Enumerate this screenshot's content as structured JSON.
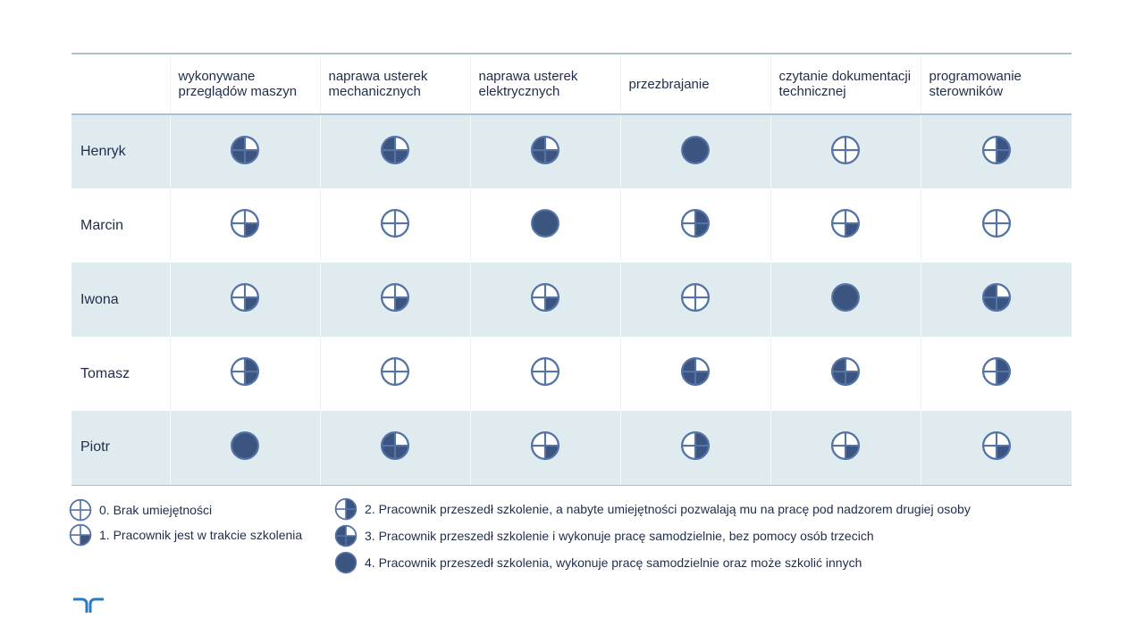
{
  "table": {
    "columns": [
      "wykonywane przeglądów maszyn",
      "naprawa usterek mechanicznych",
      "naprawa usterek elektrycznych",
      "przezbrajanie",
      "czytanie dokumentacji technicznej",
      "programowanie sterowników"
    ],
    "rows": [
      {
        "name": "Henryk",
        "levels": [
          3,
          3,
          3,
          4,
          0,
          2
        ]
      },
      {
        "name": "Marcin",
        "levels": [
          1,
          0,
          4,
          2,
          1,
          0
        ]
      },
      {
        "name": "Iwona",
        "levels": [
          1,
          1,
          1,
          0,
          4,
          3
        ]
      },
      {
        "name": "Tomasz",
        "levels": [
          2,
          0,
          0,
          3,
          3,
          2
        ]
      },
      {
        "name": "Piotr",
        "levels": [
          4,
          3,
          1,
          2,
          1,
          1
        ]
      }
    ]
  },
  "legend": [
    {
      "level": 0,
      "text": "0. Brak umiejętności"
    },
    {
      "level": 1,
      "text": "1. Pracownik jest w trakcie szkolenia"
    },
    {
      "level": 2,
      "text": "2. Pracownik przeszedł szkolenie, a nabyte umiejętności pozwalają mu na pracę pod nadzorem drugiej osoby"
    },
    {
      "level": 3,
      "text": "3. Pracownik przeszedł szkolenie i wykonuje pracę samodzielnie, bez pomocy osób trzecich"
    },
    {
      "level": 4,
      "text": "4. Pracownik przeszedł szkolenia, wykonuje pracę samodzielnie oraz może szkolić innych"
    }
  ],
  "colors": {
    "fill": "#3b5480",
    "outline": "#5473a6",
    "accent": "#2a7ac1"
  },
  "icons": {
    "skill": "quarter-circle-icon",
    "logo": "randstad-logo-icon"
  }
}
